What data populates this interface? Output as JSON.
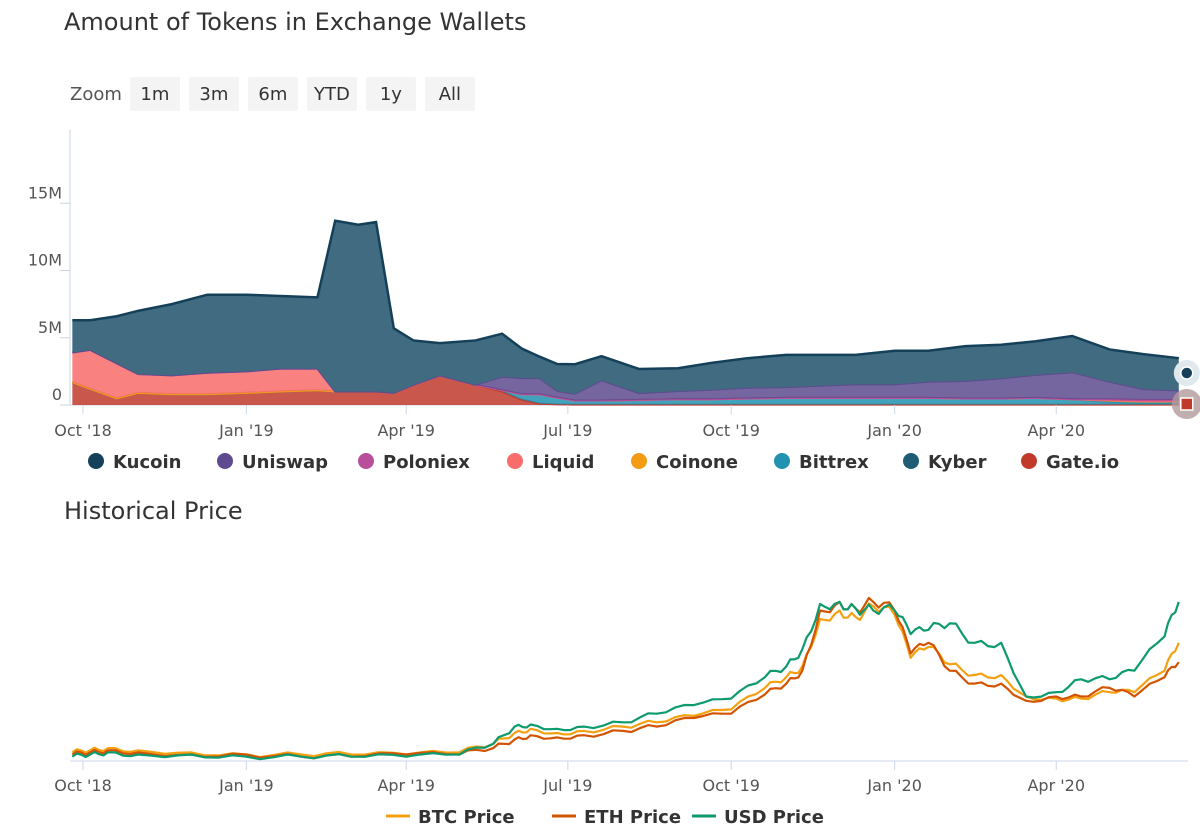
{
  "zoom": {
    "label": "Zoom",
    "buttons": [
      "1m",
      "3m",
      "6m",
      "YTD",
      "1y",
      "All"
    ]
  },
  "chart_data": [
    {
      "type": "area",
      "title": "Amount of Tokens in Exchange Wallets",
      "stacked": true,
      "x_tick_labels": [
        "Oct '18",
        "Jan '19",
        "Apr '19",
        "Jul '19",
        "Oct '19",
        "Jan '20",
        "Apr '20"
      ],
      "y_tick_labels": [
        "0",
        "5M",
        "10M",
        "15M"
      ],
      "ylim": [
        0,
        19500000
      ],
      "x": [
        "2018-09-25",
        "2018-10-05",
        "2018-10-20",
        "2018-11-01",
        "2018-11-20",
        "2018-12-10",
        "2019-01-01",
        "2019-01-20",
        "2019-02-10",
        "2019-02-20",
        "2019-03-05",
        "2019-03-15",
        "2019-03-25",
        "2019-04-05",
        "2019-04-20",
        "2019-05-10",
        "2019-05-25",
        "2019-06-05",
        "2019-06-15",
        "2019-06-25",
        "2019-07-05",
        "2019-07-20",
        "2019-08-10",
        "2019-09-01",
        "2019-09-20",
        "2019-10-10",
        "2019-11-01",
        "2019-11-20",
        "2019-12-10",
        "2020-01-01",
        "2020-01-20",
        "2020-02-10",
        "2020-03-01",
        "2020-03-20",
        "2020-04-10",
        "2020-05-01",
        "2020-05-20",
        "2020-06-09"
      ],
      "series": [
        {
          "name": "Gate.io",
          "color": "#c0392b",
          "values": [
            1700000,
            1200000,
            500000,
            900000,
            800000,
            800000,
            900000,
            1000000,
            1100000,
            1000000,
            1000000,
            1000000,
            900000,
            1500000,
            2200000,
            1500000,
            1000000,
            400000,
            100000,
            50000,
            30000,
            30000,
            30000,
            30000,
            30000,
            30000,
            30000,
            30000,
            30000,
            30000,
            30000,
            30000,
            30000,
            30000,
            30000,
            30000,
            30000,
            30000
          ]
        },
        {
          "name": "Kyber",
          "color": "#1f5d76",
          "values": [
            0,
            0,
            0,
            0,
            0,
            0,
            0,
            0,
            0,
            0,
            0,
            0,
            0,
            0,
            0,
            0,
            0,
            0,
            0,
            0,
            0,
            0,
            0,
            0,
            0,
            0,
            0,
            0,
            0,
            0,
            0,
            0,
            0,
            0,
            0,
            0,
            0,
            0
          ]
        },
        {
          "name": "Bittrex",
          "color": "#2193b0",
          "values": [
            0,
            0,
            0,
            0,
            0,
            0,
            0,
            0,
            0,
            0,
            0,
            0,
            0,
            0,
            0,
            0,
            100000,
            400000,
            700000,
            500000,
            300000,
            300000,
            350000,
            400000,
            400000,
            450000,
            500000,
            500000,
            500000,
            500000,
            500000,
            450000,
            450000,
            500000,
            400000,
            200000,
            150000,
            150000
          ]
        },
        {
          "name": "Coinone",
          "color": "#f39c12",
          "values": [
            0,
            0,
            0,
            0,
            0,
            0,
            0,
            0,
            0,
            0,
            0,
            0,
            0,
            0,
            0,
            0,
            0,
            0,
            0,
            0,
            0,
            0,
            0,
            0,
            0,
            0,
            0,
            0,
            0,
            0,
            0,
            0,
            0,
            0,
            0,
            100000,
            100000,
            100000
          ]
        },
        {
          "name": "Liquid",
          "color": "#f86c6b",
          "values": [
            2200000,
            2900000,
            2600000,
            1400000,
            1400000,
            1600000,
            1600000,
            1700000,
            1600000,
            0,
            0,
            0,
            0,
            0,
            0,
            0,
            0,
            0,
            0,
            0,
            0,
            0,
            0,
            0,
            0,
            0,
            0,
            0,
            0,
            0,
            0,
            0,
            0,
            0,
            0,
            0,
            0,
            0
          ]
        },
        {
          "name": "Poloniex",
          "color": "#b94e9b",
          "values": [
            0,
            0,
            0,
            0,
            0,
            0,
            0,
            0,
            0,
            0,
            0,
            0,
            0,
            0,
            0,
            0,
            0,
            0,
            0,
            0,
            0,
            0,
            0,
            0,
            0,
            0,
            0,
            0,
            0,
            0,
            0,
            0,
            0,
            0,
            0,
            100000,
            100000,
            100000
          ]
        },
        {
          "name": "Uniswap",
          "color": "#5e4b8f",
          "values": [
            0,
            0,
            0,
            0,
            0,
            0,
            0,
            0,
            0,
            0,
            0,
            0,
            0,
            0,
            0,
            0,
            1000000,
            1200000,
            1200000,
            500000,
            500000,
            1500000,
            500000,
            600000,
            700000,
            800000,
            800000,
            900000,
            1000000,
            1000000,
            1200000,
            1300000,
            1500000,
            1700000,
            2000000,
            1300000,
            800000,
            700000
          ]
        },
        {
          "name": "Kucoin",
          "color": "#416b80",
          "values": [
            2400000,
            2200000,
            3500000,
            4700000,
            5300000,
            5800000,
            5700000,
            5400000,
            5300000,
            12700000,
            12400000,
            12600000,
            4800000,
            3300000,
            2400000,
            3300000,
            3200000,
            2200000,
            1600000,
            2000000,
            2200000,
            1800000,
            1800000,
            1700000,
            2000000,
            2200000,
            2400000,
            2300000,
            2200000,
            2500000,
            2300000,
            2600000,
            2500000,
            2500000,
            2700000,
            2400000,
            2600000,
            2400000
          ]
        }
      ],
      "legend": {
        "placement": "bottom",
        "items": [
          {
            "name": "Kucoin",
            "color": "#14405a"
          },
          {
            "name": "Uniswap",
            "color": "#5e4b8f"
          },
          {
            "name": "Poloniex",
            "color": "#b94e9b"
          },
          {
            "name": "Liquid",
            "color": "#f86c6b"
          },
          {
            "name": "Coinone",
            "color": "#f39c12"
          },
          {
            "name": "Bittrex",
            "color": "#2193b0"
          },
          {
            "name": "Kyber",
            "color": "#1f5d76"
          },
          {
            "name": "Gate.io",
            "color": "#c0392b"
          }
        ]
      },
      "grid": false
    },
    {
      "type": "line",
      "title": "Historical Price",
      "x_tick_labels": [
        "Oct '18",
        "Jan '19",
        "Apr '19",
        "Jul '19",
        "Oct '19",
        "Jan '20",
        "Apr '20"
      ],
      "y_axis_labels": false,
      "ylim": [
        0,
        100
      ],
      "x": [
        "2018-09-25",
        "2018-10-05",
        "2018-10-15",
        "2018-11-01",
        "2018-12-01",
        "2019-01-01",
        "2019-02-01",
        "2019-03-01",
        "2019-04-01",
        "2019-05-01",
        "2019-05-20",
        "2019-06-01",
        "2019-06-10",
        "2019-06-25",
        "2019-07-10",
        "2019-08-01",
        "2019-08-20",
        "2019-09-10",
        "2019-10-01",
        "2019-10-20",
        "2019-11-01",
        "2019-11-10",
        "2019-11-20",
        "2019-12-01",
        "2019-12-10",
        "2019-12-20",
        "2020-01-01",
        "2020-01-10",
        "2020-01-20",
        "2020-02-01",
        "2020-02-15",
        "2020-03-01",
        "2020-03-15",
        "2020-04-01",
        "2020-04-15",
        "2020-05-01",
        "2020-05-15",
        "2020-06-01",
        "2020-06-09"
      ],
      "series": [
        {
          "name": "BTC Price",
          "color": "#f4a011",
          "values": [
            4,
            5,
            6,
            5,
            4,
            3,
            3,
            3,
            3,
            4,
            8,
            13,
            15,
            13,
            14,
            16,
            18,
            21,
            24,
            34,
            39,
            44,
            66,
            70,
            67,
            72,
            68,
            48,
            53,
            45,
            40,
            40,
            30,
            29,
            29,
            32,
            32,
            42,
            55
          ]
        },
        {
          "name": "ETH Price",
          "color": "#d35400",
          "values": [
            3,
            4,
            5,
            4,
            3,
            3,
            2,
            2,
            3,
            3,
            6,
            10,
            12,
            11,
            12,
            14,
            16,
            20,
            22,
            31,
            36,
            42,
            70,
            74,
            71,
            74,
            70,
            50,
            55,
            42,
            36,
            36,
            28,
            30,
            30,
            34,
            30,
            39,
            46
          ]
        },
        {
          "name": "USD Price",
          "color": "#0d9a6e",
          "values": [
            2,
            3,
            4,
            3,
            3,
            2,
            2,
            2,
            2,
            3,
            8,
            16,
            17,
            15,
            16,
            18,
            22,
            26,
            29,
            39,
            44,
            52,
            73,
            74,
            71,
            70,
            70,
            59,
            61,
            64,
            55,
            55,
            30,
            32,
            38,
            38,
            42,
            58,
            74
          ]
        }
      ],
      "legend": {
        "placement": "bottom"
      },
      "grid": false
    }
  ]
}
